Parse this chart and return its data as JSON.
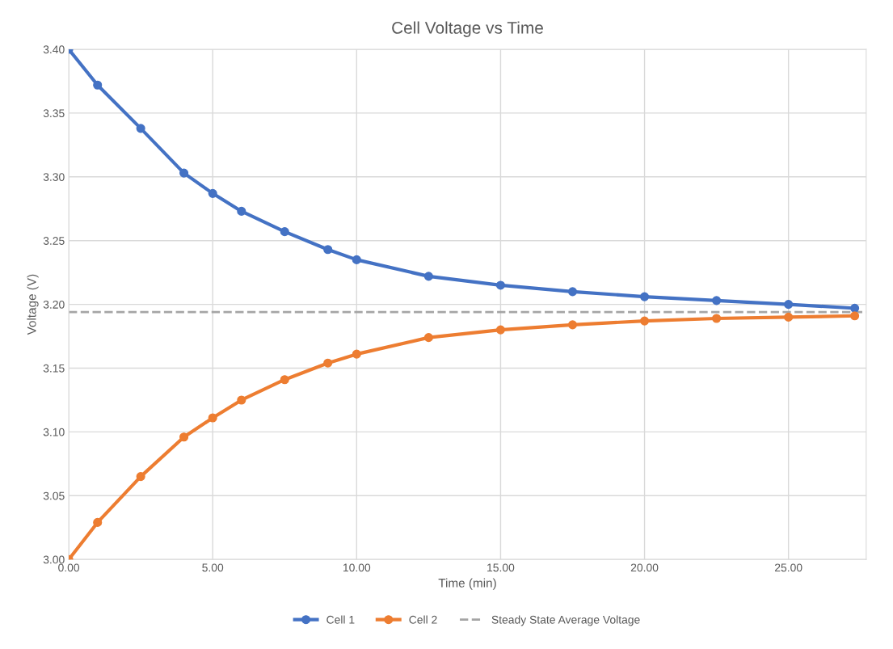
{
  "chart_data": {
    "type": "line",
    "title": "Cell Voltage vs Time",
    "xlabel": "Time (min)",
    "ylabel": "Voltage (V)",
    "series": [
      {
        "name": "Cell 1",
        "color": "#4472c4",
        "x": [
          0,
          1,
          2.5,
          4,
          5,
          6,
          7.5,
          9,
          10,
          12.5,
          15,
          17.5,
          20,
          22.5,
          25,
          27.3
        ],
        "values": [
          3.4,
          3.372,
          3.338,
          3.303,
          3.287,
          3.273,
          3.257,
          3.243,
          3.235,
          3.222,
          3.215,
          3.21,
          3.206,
          3.203,
          3.2,
          3.197
        ]
      },
      {
        "name": "Cell 2",
        "color": "#ed7d31",
        "x": [
          0,
          1,
          2.5,
          4,
          5,
          6,
          7.5,
          9,
          10,
          12.5,
          15,
          17.5,
          20,
          22.5,
          25,
          27.3
        ],
        "values": [
          3.0,
          3.029,
          3.065,
          3.096,
          3.111,
          3.125,
          3.141,
          3.154,
          3.161,
          3.174,
          3.18,
          3.184,
          3.187,
          3.189,
          3.19,
          3.191
        ]
      }
    ],
    "ref_lines": [
      {
        "axis": "y",
        "value": 3.194,
        "label": "Steady State Average Voltage",
        "color": "#a5a5a5",
        "line_style": "dashed"
      }
    ],
    "xlim": [
      0,
      27.7
    ],
    "xticks": [
      {
        "value": 0,
        "label": "0.00"
      },
      {
        "value": 5,
        "label": "5.00"
      },
      {
        "value": 10,
        "label": "10.00"
      },
      {
        "value": 15,
        "label": "15.00"
      },
      {
        "value": 20,
        "label": "20.00"
      },
      {
        "value": 25,
        "label": "25.00"
      }
    ],
    "ylim": [
      3.0,
      3.4
    ],
    "yticks": [
      {
        "value": 3.0,
        "label": "3.00"
      },
      {
        "value": 3.05,
        "label": "3.05"
      },
      {
        "value": 3.1,
        "label": "3.10"
      },
      {
        "value": 3.15,
        "label": "3.15"
      },
      {
        "value": 3.2,
        "label": "3.20"
      },
      {
        "value": 3.25,
        "label": "3.25"
      },
      {
        "value": 3.3,
        "label": "3.30"
      },
      {
        "value": 3.35,
        "label": "3.35"
      },
      {
        "value": 3.4,
        "label": "3.40"
      }
    ],
    "grid": true,
    "legend": "bottom",
    "marker": "circle",
    "line_style": "solid"
  }
}
